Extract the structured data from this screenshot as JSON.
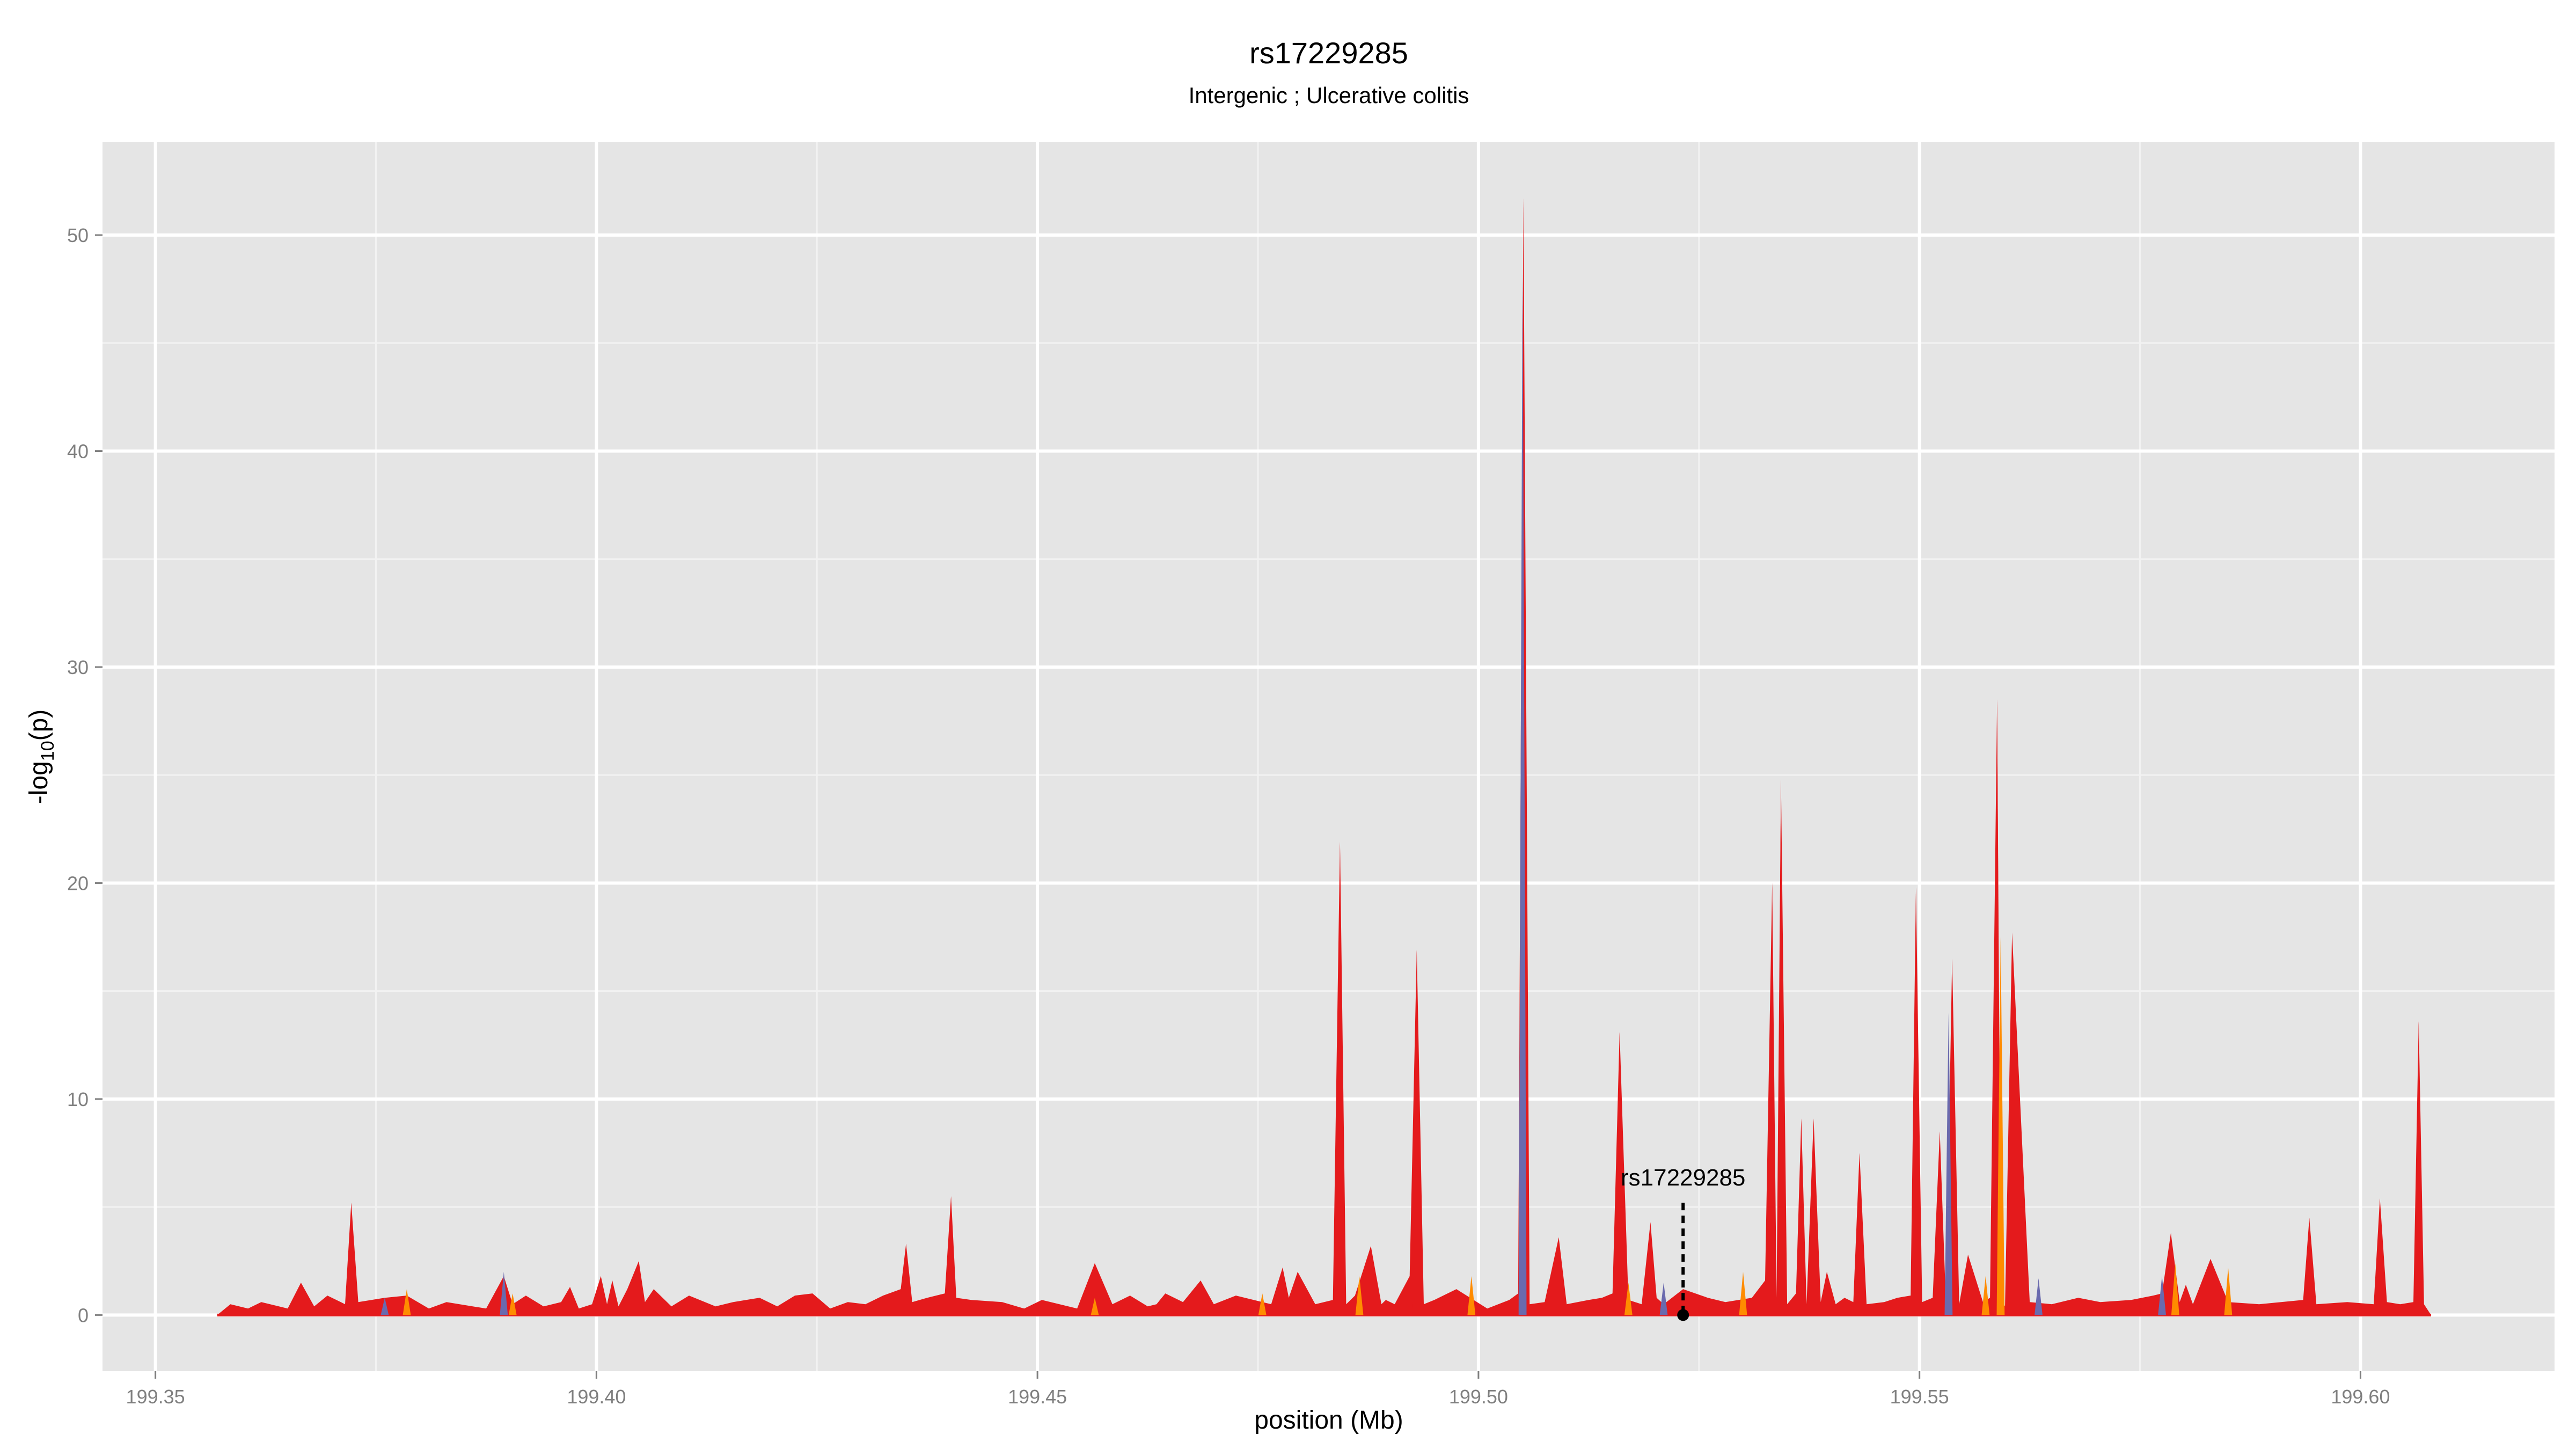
{
  "chart_data": {
    "type": "area",
    "title": "rs17229285",
    "subtitle": "Intergenic ; Ulcerative colitis",
    "xlabel": "position (Mb)",
    "ylabel_main": "-log",
    "ylabel_sub": "10",
    "ylabel_end": "(p)",
    "xlim": [
      199.344,
      199.622
    ],
    "ylim": [
      -2.6,
      54.3
    ],
    "x_ticks": [
      199.35,
      199.4,
      199.45,
      199.5,
      199.55,
      199.6
    ],
    "x_tick_labels": [
      "199.35",
      "199.40",
      "199.45",
      "199.50",
      "199.55",
      "199.60"
    ],
    "y_ticks": [
      0,
      10,
      20,
      30,
      40,
      50
    ],
    "y_tick_labels": [
      "0",
      "10",
      "20",
      "30",
      "40",
      "50"
    ],
    "grid": true,
    "colors": {
      "panel_bg": "#e5e5e5",
      "grid_major": "#ffffff",
      "grid_minor": "#f2f2f2",
      "main": "#e41a1c",
      "orange": "#ff8c00",
      "blue": "#6a6aae"
    },
    "series": [
      {
        "color_key": "main",
        "x": [
          199.357,
          199.3585,
          199.3605,
          199.362,
          199.365,
          199.3665,
          199.368,
          199.3695,
          199.3715,
          199.3722,
          199.373,
          199.376,
          199.3785,
          199.381,
          199.383,
          199.3875,
          199.3895,
          199.3905,
          199.392,
          199.394,
          199.396,
          199.397,
          199.398,
          199.3995,
          199.4005,
          199.4012,
          199.4018,
          199.4025,
          199.4035,
          199.4048,
          199.4055,
          199.4065,
          199.4085,
          199.4105,
          199.4135,
          199.4155,
          199.4185,
          199.4205,
          199.4225,
          199.4245,
          199.4265,
          199.4285,
          199.4305,
          199.4325,
          199.4345,
          199.4351,
          199.4358,
          199.4375,
          199.4395,
          199.4402,
          199.4408,
          199.4425,
          199.446,
          199.4485,
          199.4505,
          199.4545,
          199.4565,
          199.4585,
          199.4605,
          199.4625,
          199.4635,
          199.4645,
          199.4665,
          199.4685,
          199.47,
          199.4725,
          199.4765,
          199.4778,
          199.4785,
          199.4795,
          199.4815,
          199.4835,
          199.4843,
          199.485,
          199.486,
          199.4878,
          199.489,
          199.4895,
          199.4905,
          199.4922,
          199.493,
          199.4938,
          199.495,
          199.4975,
          199.501,
          199.5035,
          199.5045,
          199.5051,
          199.5058,
          199.5075,
          199.5091,
          199.51,
          199.5125,
          199.514,
          199.5152,
          199.516,
          199.517,
          199.5185,
          199.5195,
          199.5202,
          199.521,
          199.5232,
          199.526,
          199.528,
          199.531,
          199.5325,
          199.5333,
          199.5338,
          199.5343,
          199.535,
          199.536,
          199.5366,
          199.5372,
          199.538,
          199.5388,
          199.5395,
          199.5405,
          199.5415,
          199.5425,
          199.5432,
          199.544,
          199.546,
          199.5475,
          199.549,
          199.5496,
          199.5503,
          199.5515,
          199.5523,
          199.553,
          199.5537,
          199.5545,
          199.5555,
          199.5572,
          199.558,
          199.5588,
          199.5592,
          199.5597,
          199.5605,
          199.5625,
          199.565,
          199.568,
          199.5705,
          199.574,
          199.5765,
          199.5775,
          199.5785,
          199.5795,
          199.5802,
          199.581,
          199.583,
          199.585,
          199.5885,
          199.5935,
          199.5942,
          199.595,
          199.5985,
          199.6015,
          199.6022,
          199.603,
          199.6045,
          199.606,
          199.6066,
          199.6072
        ],
        "y": [
          0,
          0.5,
          0.3,
          0.6,
          0.3,
          1.5,
          0.4,
          0.9,
          0.5,
          5.2,
          0.6,
          0.8,
          0.9,
          0.3,
          0.6,
          0.3,
          1.8,
          0.5,
          0.9,
          0.4,
          0.6,
          1.3,
          0.3,
          0.5,
          1.8,
          0.5,
          1.6,
          0.4,
          1.2,
          2.5,
          0.6,
          1.2,
          0.4,
          0.9,
          0.4,
          0.6,
          0.8,
          0.4,
          0.9,
          1.0,
          0.3,
          0.6,
          0.5,
          0.9,
          1.2,
          3.3,
          0.6,
          0.8,
          1.0,
          5.5,
          0.8,
          0.7,
          0.6,
          0.3,
          0.7,
          0.3,
          2.4,
          0.5,
          0.9,
          0.4,
          0.5,
          1.0,
          0.6,
          1.6,
          0.5,
          0.9,
          0.5,
          2.2,
          0.8,
          2.0,
          0.5,
          0.7,
          21.9,
          0.5,
          0.9,
          3.2,
          0.5,
          0.7,
          0.5,
          1.8,
          16.9,
          0.5,
          0.7,
          1.2,
          0.3,
          0.7,
          1.0,
          51.7,
          0.5,
          0.6,
          3.6,
          0.5,
          0.7,
          0.8,
          1.0,
          13.1,
          0.7,
          0.5,
          4.3,
          0.8,
          0.5,
          1.2,
          0.8,
          0.6,
          0.8,
          1.6,
          20.0,
          0.8,
          24.8,
          0.5,
          1.0,
          9.1,
          0.5,
          9.1,
          0.6,
          2.0,
          0.5,
          0.8,
          0.6,
          7.5,
          0.5,
          0.6,
          0.8,
          0.9,
          19.8,
          0.6,
          0.8,
          8.5,
          0.5,
          16.5,
          0.5,
          2.8,
          0.6,
          0.8,
          28.5,
          0.8,
          0.4,
          17.7,
          0.6,
          0.5,
          0.8,
          0.6,
          0.7,
          0.9,
          1.0,
          3.8,
          0.6,
          1.4,
          0.5,
          2.6,
          0.6,
          0.5,
          0.7,
          4.5,
          0.5,
          0.6,
          0.5,
          5.4,
          0.6,
          0.5,
          0.6,
          13.6,
          0.5
        ]
      },
      {
        "color_key": "orange",
        "x": [
          199.3785,
          199.3905,
          199.4565,
          199.4755,
          199.4865,
          199.4992,
          199.517,
          199.53,
          199.5575,
          199.5592,
          199.579,
          199.585
        ],
        "y": [
          1.2,
          1.0,
          0.8,
          1.0,
          1.8,
          1.8,
          1.5,
          2.0,
          1.8,
          17.5,
          2.4,
          2.2
        ]
      },
      {
        "color_key": "blue",
        "x": [
          199.376,
          199.3895,
          199.505,
          199.521,
          199.5533,
          199.5635,
          199.5775
        ],
        "y": [
          0.8,
          2.0,
          48.5,
          1.5,
          14.0,
          1.7,
          1.8
        ]
      }
    ],
    "annotation": {
      "label": "rs17229285",
      "x": 199.5232,
      "y_point": 0.0,
      "y_line_top": 5.2
    }
  }
}
